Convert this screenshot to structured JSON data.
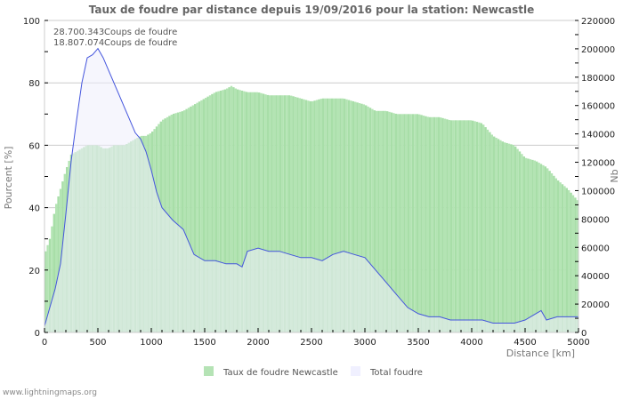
{
  "title": "Taux de foudre par distance depuis 19/09/2016 pour la station: Newcastle",
  "info_lines": [
    {
      "value": "28.700.343",
      "label": "Coups de foudre"
    },
    {
      "value": "18.807.074",
      "label": "Coups de foudre"
    }
  ],
  "y_left_label": "Pourcent   [%]",
  "y_right_label": "Nb",
  "x_label": "Distance   [km]",
  "legend": [
    {
      "label": "Taux de foudre Newcastle",
      "color": "#b5e3b5"
    },
    {
      "label": "Total foudre",
      "color": "#f0f0ff"
    }
  ],
  "footer": "www.lightningmaps.org",
  "colors": {
    "rate_fill": "#a9dfa9",
    "total_fill": "#eeeefc",
    "total_line": "#4455dd",
    "overlap_fill": "#a5d6b5",
    "grid": "#cccccc"
  },
  "chart_data": {
    "type": "area",
    "title": "Taux de foudre par distance depuis 19/09/2016 pour la station: Newcastle",
    "xlabel": "Distance [km]",
    "ylabel_left": "Pourcent [%]",
    "ylabel_right": "Nb",
    "xlim": [
      0,
      5000
    ],
    "ylim_left": [
      0,
      100
    ],
    "ylim_right": [
      0,
      220000
    ],
    "x_ticks": [
      0,
      500,
      1000,
      1500,
      2000,
      2500,
      3000,
      3500,
      4000,
      4500,
      5000
    ],
    "y_left_ticks": [
      0,
      20,
      40,
      60,
      80,
      100
    ],
    "y_right_ticks": [
      0,
      20000,
      40000,
      60000,
      80000,
      100000,
      120000,
      140000,
      160000,
      180000,
      200000,
      220000
    ],
    "legend_position": "bottom",
    "grid": true,
    "series": [
      {
        "name": "Taux de foudre Newcastle",
        "axis": "left",
        "style": "bars",
        "x": [
          0,
          50,
          100,
          150,
          200,
          250,
          300,
          350,
          400,
          450,
          500,
          550,
          600,
          650,
          700,
          750,
          800,
          850,
          900,
          950,
          1000,
          1100,
          1200,
          1300,
          1400,
          1500,
          1600,
          1700,
          1750,
          1800,
          1900,
          2000,
          2100,
          2200,
          2300,
          2400,
          2500,
          2600,
          2700,
          2800,
          2900,
          3000,
          3100,
          3200,
          3300,
          3400,
          3500,
          3600,
          3700,
          3800,
          3900,
          4000,
          4100,
          4200,
          4300,
          4400,
          4500,
          4600,
          4700,
          4800,
          4900,
          5000
        ],
        "values": [
          25,
          30,
          40,
          46,
          52,
          57,
          58,
          59,
          60,
          60,
          60,
          59,
          59,
          60,
          60,
          60,
          61,
          62,
          63,
          63,
          64,
          68,
          70,
          71,
          73,
          75,
          77,
          78,
          79,
          78,
          77,
          77,
          76,
          76,
          76,
          75,
          74,
          75,
          75,
          75,
          74,
          73,
          71,
          71,
          70,
          70,
          70,
          69,
          69,
          68,
          68,
          68,
          67,
          63,
          61,
          60,
          56,
          55,
          53,
          49,
          46,
          42
        ]
      },
      {
        "name": "Total foudre",
        "axis": "right",
        "style": "line-area",
        "x": [
          0,
          50,
          100,
          150,
          200,
          250,
          300,
          350,
          400,
          450,
          500,
          550,
          600,
          650,
          700,
          750,
          800,
          850,
          900,
          950,
          1000,
          1050,
          1100,
          1200,
          1300,
          1400,
          1500,
          1600,
          1700,
          1800,
          1850,
          1900,
          2000,
          2100,
          2200,
          2300,
          2400,
          2500,
          2600,
          2700,
          2800,
          2900,
          3000,
          3100,
          3200,
          3300,
          3400,
          3500,
          3600,
          3700,
          3800,
          3900,
          4000,
          4100,
          4200,
          4300,
          4400,
          4500,
          4600,
          4650,
          4700,
          4800,
          4900,
          5000
        ],
        "values": [
          4400,
          17600,
          30800,
          48400,
          83600,
          121000,
          149600,
          176000,
          193600,
          195800,
          200200,
          193600,
          184800,
          176000,
          167200,
          158400,
          149600,
          140800,
          136400,
          127600,
          114400,
          99000,
          88000,
          79200,
          72600,
          55000,
          50600,
          50600,
          48400,
          48400,
          46200,
          57200,
          59400,
          57200,
          57200,
          55000,
          52800,
          52800,
          50600,
          55000,
          57200,
          55000,
          52800,
          44000,
          35200,
          26400,
          17600,
          13200,
          11000,
          11000,
          8800,
          8800,
          8800,
          8800,
          6600,
          6600,
          6600,
          8800,
          13200,
          15400,
          8800,
          11000,
          11000,
          11000
        ]
      }
    ]
  }
}
